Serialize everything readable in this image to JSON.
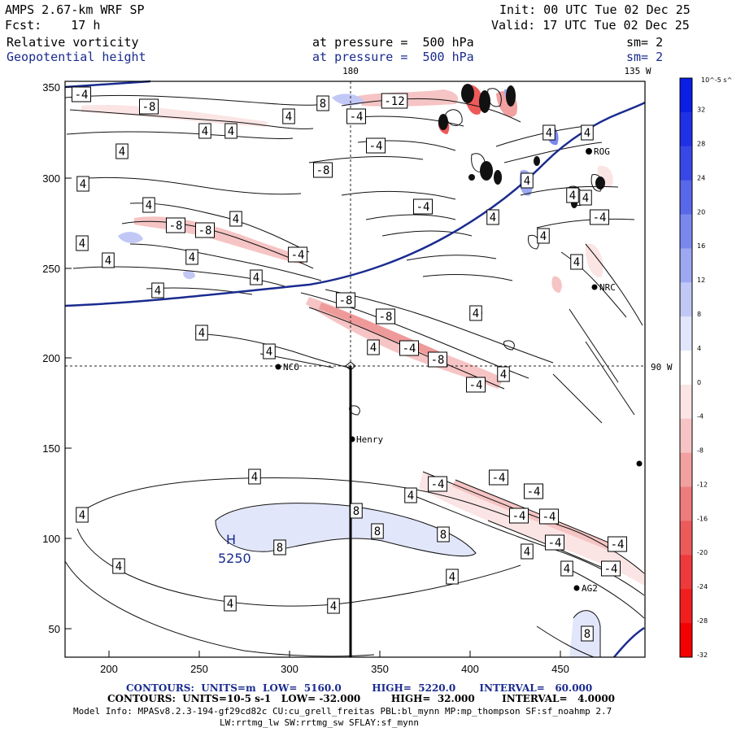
{
  "header": {
    "model": "AMPS 2.67-km WRF SP",
    "forecast": "Fcst:    17 h",
    "init": "Init: 00 UTC Tue 02 Dec 25",
    "valid": "Valid: 17 UTC Tue 02 Dec 25",
    "field1_name": "Relative vorticity",
    "field1_level": "at pressure =  500 hPa",
    "field1_smooth": "sm= 2",
    "field2_name": "Geopotential height",
    "field2_level": "at pressure =  500 hPa",
    "field2_smooth": "sm= 2"
  },
  "map": {
    "lon_labels": [
      "180",
      "135 W",
      "90 W"
    ],
    "x_ticks": [
      "200",
      "250",
      "300",
      "350",
      "400",
      "450"
    ],
    "y_ticks": [
      "350",
      "300",
      "250",
      "200",
      "150",
      "100",
      "50"
    ],
    "stations": [
      "NCO",
      "Henry",
      "ROG",
      "NRC",
      "AG2"
    ],
    "height_high": {
      "symbol": "H",
      "value": "5250"
    },
    "contour_labels_pos": [
      "4",
      "8"
    ],
    "contour_labels_neg": [
      "-4",
      "-8",
      "-12"
    ]
  },
  "colorbar": {
    "units": "10^-5 s^-1",
    "labels": [
      "32",
      "28",
      "24",
      "20",
      "16",
      "12",
      "8",
      "4",
      "0",
      "-4",
      "-8",
      "-12",
      "-16",
      "-20",
      "-24",
      "-28",
      "-32"
    ],
    "colors": [
      "#0a1ee6",
      "#2030e6",
      "#3848e8",
      "#5868ea",
      "#7a88ee",
      "#9ea8f2",
      "#c2c8f6",
      "#e2e6fa",
      "#ffffff",
      "#fbe4e4",
      "#f6c4c4",
      "#f2a0a0",
      "#ee7c7c",
      "#ec5a5a",
      "#ee3a3a",
      "#f21e1e",
      "#f40000"
    ]
  },
  "footer": {
    "line1": "CONTOURS:  UNITS=m  LOW=  5160.0         HIGH=  5220.0       INTERVAL=   60.000",
    "line2": "CONTOURS:  UNITS=10-5 s-1   LOW= -32.000         HIGH=  32.000        INTERVAL=   4.0000",
    "line3": "Model Info: MPASv8.2.3-194-gf29cd82c CU:cu_grell_freitas PBL:bl_mynn MP:mp_thompson SF:sf_noahmp 2.7",
    "line4": "LW:rrtmg_lw SW:rrtmg_sw SFLAY:sf_mynn"
  }
}
